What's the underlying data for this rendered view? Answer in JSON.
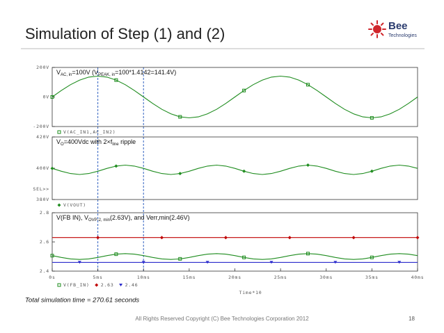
{
  "title": "Simulation of Step (1) and (2)",
  "logo": {
    "name": "Bee",
    "sub": "Technologies"
  },
  "note": "Total simulation time = 270.61 seconds",
  "footer": "All Rights Reserved Copyright (C) Bee Technologies Corporation 2012",
  "page_number": "18",
  "chart_data": [
    {
      "type": "line",
      "annotation": [
        {
          "text": "V",
          "sub": false
        },
        {
          "text": "AC, in",
          "sub": true
        },
        {
          "text": "=100V (V",
          "sub": false
        },
        {
          "text": "PEAK, in",
          "sub": true
        },
        {
          "text": "=100*1.4142=141.4V)",
          "sub": false
        }
      ],
      "x": [
        0,
        1,
        2,
        3,
        4,
        5,
        6,
        7,
        8,
        9,
        10,
        11,
        12,
        13,
        14,
        15,
        16,
        17,
        18,
        19,
        20,
        21,
        22,
        23,
        24,
        25,
        26,
        27,
        28,
        29,
        30,
        31,
        32,
        33,
        34,
        35,
        36,
        37,
        38,
        39,
        40
      ],
      "xlim": [
        0,
        40
      ],
      "ylim": [
        -200,
        200
      ],
      "yticks": [
        {
          "value": 200,
          "label": "200V"
        },
        {
          "value": 0,
          "label": "0V"
        },
        {
          "value": -200,
          "label": "-200V"
        }
      ],
      "series": [
        {
          "name": "V(AC_IN1,AC_IN2)",
          "color": "#1e8c1e",
          "marker": "square",
          "values": [
            0,
            43.7,
            83.1,
            114.4,
            134.5,
            141.4,
            134.5,
            114.4,
            83.1,
            43.7,
            0,
            -43.7,
            -83.1,
            -114.4,
            -134.5,
            -141.4,
            -134.5,
            -114.4,
            -83.1,
            -43.7,
            0,
            43.7,
            83.1,
            114.4,
            134.5,
            141.4,
            134.5,
            114.4,
            83.1,
            43.7,
            0,
            -43.7,
            -83.1,
            -114.4,
            -134.5,
            -141.4,
            -134.5,
            -114.4,
            -83.1,
            -43.7,
            0
          ]
        }
      ]
    },
    {
      "type": "line",
      "annotation": [
        {
          "text": "V",
          "sub": false
        },
        {
          "text": "O",
          "sub": true
        },
        {
          "text": "=400Vdc with 2×f",
          "sub": false
        },
        {
          "text": "line",
          "sub": true
        },
        {
          "text": " ripple",
          "sub": false
        }
      ],
      "sel_label": "SEL>>",
      "x": [
        0,
        1,
        2,
        3,
        4,
        5,
        6,
        7,
        8,
        9,
        10,
        11,
        12,
        13,
        14,
        15,
        16,
        17,
        18,
        19,
        20,
        21,
        22,
        23,
        24,
        25,
        26,
        27,
        28,
        29,
        30,
        31,
        32,
        33,
        34,
        35,
        36,
        37,
        38,
        39,
        40
      ],
      "xlim": [
        0,
        40
      ],
      "ylim": [
        380,
        420
      ],
      "yticks": [
        {
          "value": 420,
          "label": "420V"
        },
        {
          "value": 400,
          "label": "400V"
        },
        {
          "value": 380,
          "label": "380V"
        }
      ],
      "series": [
        {
          "name": "V(VOUT)",
          "color": "#1e8c1e",
          "marker": "diamond",
          "values": [
            399.9,
            398.1,
            396.6,
            396,
            396.6,
            398.1,
            399.9,
            401.4,
            402,
            401.4,
            399.9,
            398.1,
            396.6,
            396,
            396.6,
            398.1,
            399.9,
            401.4,
            402,
            401.4,
            399.9,
            398.1,
            396.6,
            396,
            396.6,
            398.1,
            399.9,
            401.4,
            402,
            401.4,
            399.9,
            398.1,
            396.6,
            396,
            396.6,
            398.1,
            399.9,
            401.4,
            402,
            401.4,
            399.9
          ]
        }
      ]
    },
    {
      "type": "line",
      "annotation": [
        {
          "text": "V(FB IN), V",
          "sub": false
        },
        {
          "text": "OVP-2, min",
          "sub": true
        },
        {
          "text": "(2.63V), and Verr,min(2.46V)",
          "sub": false
        }
      ],
      "x_label": "Time*10",
      "x": [
        0,
        1,
        2,
        3,
        4,
        5,
        6,
        7,
        8,
        9,
        10,
        11,
        12,
        13,
        14,
        15,
        16,
        17,
        18,
        19,
        20,
        21,
        22,
        23,
        24,
        25,
        26,
        27,
        28,
        29,
        30,
        31,
        32,
        33,
        34,
        35,
        36,
        37,
        38,
        39,
        40
      ],
      "xlim": [
        0,
        40
      ],
      "xticks": [
        {
          "value": 0,
          "label": "0s"
        },
        {
          "value": 5,
          "label": "5ms"
        },
        {
          "value": 10,
          "label": "10ms"
        },
        {
          "value": 15,
          "label": "15ms"
        },
        {
          "value": 20,
          "label": "20ms"
        },
        {
          "value": 25,
          "label": "25ms"
        },
        {
          "value": 30,
          "label": "30ms"
        },
        {
          "value": 35,
          "label": "35ms"
        },
        {
          "value": 40,
          "label": "40ms"
        }
      ],
      "ylim": [
        2.4,
        2.8
      ],
      "yticks": [
        2.8,
        2.6,
        2.4
      ],
      "series": [
        {
          "name": "V(FB_IN)",
          "color": "#1e8c1e",
          "marker": "square",
          "values": [
            2.506,
            2.494,
            2.484,
            2.48,
            2.484,
            2.494,
            2.506,
            2.516,
            2.52,
            2.516,
            2.506,
            2.494,
            2.484,
            2.48,
            2.484,
            2.494,
            2.506,
            2.516,
            2.52,
            2.516,
            2.506,
            2.494,
            2.484,
            2.48,
            2.484,
            2.494,
            2.506,
            2.516,
            2.52,
            2.516,
            2.506,
            2.494,
            2.484,
            2.48,
            2.484,
            2.494,
            2.506,
            2.516,
            2.52,
            2.516,
            2.506
          ]
        },
        {
          "name": "2.63",
          "color": "#c00000",
          "marker": "diamond",
          "values": [
            2.63,
            2.63,
            2.63,
            2.63,
            2.63,
            2.63,
            2.63,
            2.63,
            2.63,
            2.63,
            2.63,
            2.63,
            2.63,
            2.63,
            2.63,
            2.63,
            2.63,
            2.63,
            2.63,
            2.63,
            2.63,
            2.63,
            2.63,
            2.63,
            2.63,
            2.63,
            2.63,
            2.63,
            2.63,
            2.63,
            2.63,
            2.63,
            2.63,
            2.63,
            2.63,
            2.63,
            2.63,
            2.63,
            2.63,
            2.63,
            2.63
          ]
        },
        {
          "name": "2.46",
          "color": "#2a2acc",
          "marker": "triangle",
          "values": [
            2.46,
            2.46,
            2.46,
            2.46,
            2.46,
            2.46,
            2.46,
            2.46,
            2.46,
            2.46,
            2.46,
            2.46,
            2.46,
            2.46,
            2.46,
            2.46,
            2.46,
            2.46,
            2.46,
            2.46,
            2.46,
            2.46,
            2.46,
            2.46,
            2.46,
            2.46,
            2.46,
            2.46,
            2.46,
            2.46,
            2.46,
            2.46,
            2.46,
            2.46,
            2.46,
            2.46,
            2.46,
            2.46,
            2.46,
            2.46,
            2.46
          ]
        }
      ]
    }
  ]
}
